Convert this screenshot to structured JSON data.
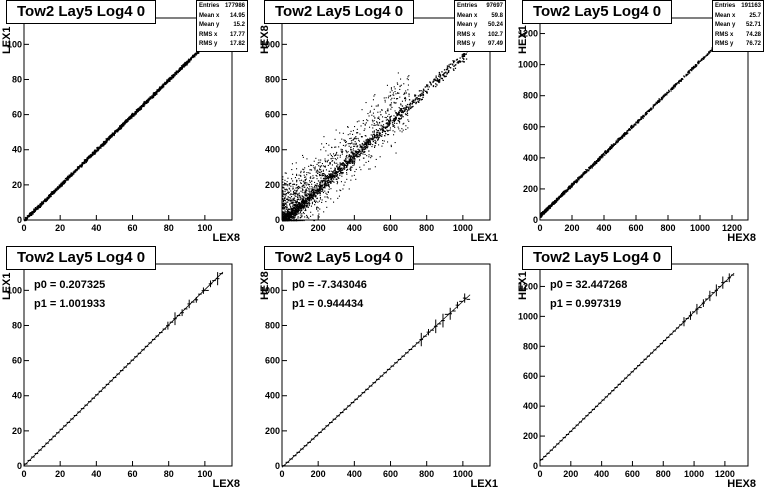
{
  "chart_data": [
    {
      "type": "scatter",
      "title": "Tow2 Lay5 Log4 0",
      "xlabel": "LEX8",
      "ylabel": "LEX1",
      "xlim": [
        0,
        115
      ],
      "ylim": [
        0,
        115
      ],
      "xticks": [
        0,
        20,
        40,
        60,
        80,
        100
      ],
      "yticks": [
        0,
        20,
        40,
        60,
        80,
        100
      ],
      "stats": [
        {
          "label": "Entries",
          "value": "177986"
        },
        {
          "label": "Mean x",
          "value": "14.95"
        },
        {
          "label": "Mean y",
          "value": "15.2"
        },
        {
          "label": "RMS x",
          "value": "17.77"
        },
        {
          "label": "RMS y",
          "value": "17.82"
        }
      ],
      "trend": {
        "slope": 1.0,
        "intercept": 0.2,
        "x_range": [
          0,
          108
        ]
      }
    },
    {
      "type": "scatter",
      "title": "Tow2 Lay5 Log4 0",
      "xlabel": "LEX1",
      "ylabel": "HEX8",
      "xlim": [
        0,
        1150
      ],
      "ylim": [
        0,
        1150
      ],
      "xticks": [
        0,
        200,
        400,
        600,
        800,
        1000
      ],
      "yticks": [
        0,
        200,
        400,
        600,
        800,
        1000
      ],
      "stats": [
        {
          "label": "Entries",
          "value": "97697"
        },
        {
          "label": "Mean x",
          "value": "59.8"
        },
        {
          "label": "Mean y",
          "value": "50.24"
        },
        {
          "label": "RMS x",
          "value": "102.7"
        },
        {
          "label": "RMS y",
          "value": "97.49"
        }
      ],
      "trend": {
        "slope": 0.944,
        "intercept": -7.3,
        "x_range": [
          0,
          1020
        ]
      }
    },
    {
      "type": "scatter",
      "title": "Tow2 Lay5 Log4 0",
      "xlabel": "HEX8",
      "ylabel": "HEX1",
      "xlim": [
        0,
        1300
      ],
      "ylim": [
        0,
        1300
      ],
      "xticks": [
        0,
        200,
        400,
        600,
        800,
        1000,
        1200
      ],
      "yticks": [
        0,
        200,
        400,
        600,
        800,
        1000,
        1200
      ],
      "stats": [
        {
          "label": "Entries",
          "value": "191163"
        },
        {
          "label": "Mean x",
          "value": "25.7"
        },
        {
          "label": "Mean y",
          "value": "52.71"
        },
        {
          "label": "RMS x",
          "value": "74.28"
        },
        {
          "label": "RMS y",
          "value": "76.72"
        }
      ],
      "trend": {
        "slope": 0.997,
        "intercept": 32.4,
        "x_range": [
          0,
          1150
        ]
      }
    },
    {
      "type": "line",
      "title": "Tow2 Lay5 Log4 0",
      "xlabel": "LEX8",
      "ylabel": "LEX1",
      "xlim": [
        0,
        115
      ],
      "ylim": [
        0,
        115
      ],
      "xticks": [
        0,
        20,
        40,
        60,
        80,
        100
      ],
      "yticks": [
        0,
        20,
        40,
        60,
        80,
        100
      ],
      "fit": [
        "p0 = 0.207325",
        "p1 = 1.001933"
      ],
      "p0": 0.207325,
      "p1": 1.001933,
      "x_range": [
        0,
        110
      ],
      "points": 56
    },
    {
      "type": "line",
      "title": "Tow2 Lay5 Log4 0",
      "xlabel": "LEX1",
      "ylabel": "HEX8",
      "xlim": [
        0,
        1150
      ],
      "ylim": [
        0,
        1150
      ],
      "xticks": [
        0,
        200,
        400,
        600,
        800,
        1000
      ],
      "yticks": [
        0,
        200,
        400,
        600,
        800,
        1000
      ],
      "fit": [
        "p0 = -7.343046",
        "p1 = 0.944434"
      ],
      "p0": -7.343046,
      "p1": 0.944434,
      "x_range": [
        0,
        1040
      ],
      "points": 52
    },
    {
      "type": "line",
      "title": "Tow2 Lay5 Log4 0",
      "xlabel": "HEX8",
      "ylabel": "HEX1",
      "xlim": [
        0,
        1350
      ],
      "ylim": [
        0,
        1350
      ],
      "xticks": [
        0,
        200,
        400,
        600,
        800,
        1000,
        1200
      ],
      "yticks": [
        0,
        200,
        400,
        600,
        800,
        1000,
        1200
      ],
      "fit": [
        "p0 = 32.447268",
        "p1 = 0.997319"
      ],
      "p0": 32.447268,
      "p1": 0.997319,
      "x_range": [
        0,
        1260
      ],
      "points": 60
    }
  ]
}
